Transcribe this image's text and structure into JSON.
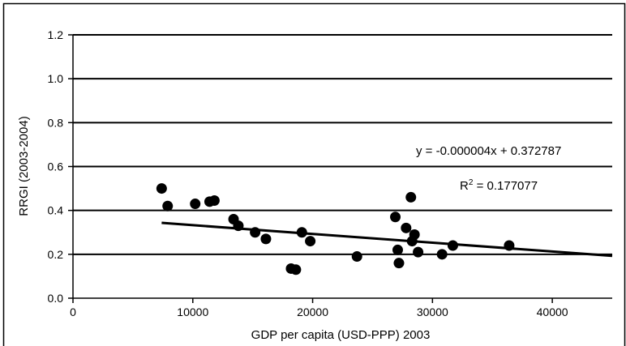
{
  "chart_data": {
    "type": "scatter",
    "xlabel": "GDP per capita (USD-PPP) 2003",
    "ylabel": "RRGI (2003-2004)",
    "xlim": [
      0,
      45000
    ],
    "ylim": [
      0,
      1.2
    ],
    "x_ticks": [
      "0",
      "10000",
      "20000",
      "30000",
      "40000"
    ],
    "y_ticks": [
      "0.0",
      "0.2",
      "0.4",
      "0.6",
      "0.8",
      "1.0",
      "1.2"
    ],
    "grid": "horizontal",
    "points": [
      {
        "x": 7400,
        "y": 0.5
      },
      {
        "x": 7900,
        "y": 0.42
      },
      {
        "x": 10200,
        "y": 0.43
      },
      {
        "x": 11400,
        "y": 0.44
      },
      {
        "x": 11800,
        "y": 0.445
      },
      {
        "x": 13400,
        "y": 0.36
      },
      {
        "x": 13800,
        "y": 0.33
      },
      {
        "x": 15200,
        "y": 0.3
      },
      {
        "x": 16100,
        "y": 0.27
      },
      {
        "x": 18200,
        "y": 0.135
      },
      {
        "x": 18600,
        "y": 0.13
      },
      {
        "x": 19100,
        "y": 0.3
      },
      {
        "x": 19800,
        "y": 0.26
      },
      {
        "x": 23700,
        "y": 0.19
      },
      {
        "x": 26900,
        "y": 0.37
      },
      {
        "x": 27100,
        "y": 0.22
      },
      {
        "x": 27200,
        "y": 0.16
      },
      {
        "x": 27800,
        "y": 0.32
      },
      {
        "x": 28200,
        "y": 0.46
      },
      {
        "x": 28300,
        "y": 0.26
      },
      {
        "x": 28500,
        "y": 0.29
      },
      {
        "x": 28800,
        "y": 0.21
      },
      {
        "x": 30800,
        "y": 0.2
      },
      {
        "x": 31700,
        "y": 0.24
      },
      {
        "x": 36400,
        "y": 0.24
      }
    ],
    "trendline": {
      "slope": -4e-06,
      "intercept": 0.372787,
      "x_range": [
        7400,
        45000
      ],
      "equation": "y = -0.000004x + 0.372787",
      "r2_prefix": "R",
      "r2_sup": "2",
      "r2_value": " = 0.177077"
    }
  }
}
